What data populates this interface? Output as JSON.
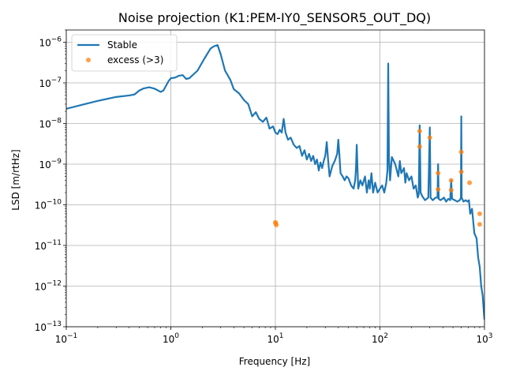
{
  "chart_data": {
    "type": "line",
    "title": "Noise projection (K1:PEM-IY0_SENSOR5_OUT_DQ)",
    "xlabel": "Frequency [Hz]",
    "ylabel": "LSD [m/rtHz]",
    "xscale": "log",
    "yscale": "log",
    "xlim": [
      0.1,
      1000
    ],
    "ylim": [
      1e-13,
      2e-06
    ],
    "grid": true,
    "legend_position": "top-left",
    "x_ticks": [
      {
        "value": 0.1,
        "base": "10",
        "exp": "−1"
      },
      {
        "value": 1,
        "base": "10",
        "exp": "0"
      },
      {
        "value": 10,
        "base": "10",
        "exp": "1"
      },
      {
        "value": 100,
        "base": "10",
        "exp": "2"
      },
      {
        "value": 1000,
        "base": "10",
        "exp": "3"
      }
    ],
    "y_ticks": [
      {
        "value": 1e-13,
        "base": "10",
        "exp": "−13"
      },
      {
        "value": 1e-12,
        "base": "10",
        "exp": "−12"
      },
      {
        "value": 1e-11,
        "base": "10",
        "exp": "−11"
      },
      {
        "value": 1e-10,
        "base": "10",
        "exp": "−10"
      },
      {
        "value": 1e-09,
        "base": "10",
        "exp": "−9"
      },
      {
        "value": 1e-08,
        "base": "10",
        "exp": "−8"
      },
      {
        "value": 1e-07,
        "base": "10",
        "exp": "−7"
      },
      {
        "value": 1e-06,
        "base": "10",
        "exp": "−6"
      }
    ],
    "series": [
      {
        "name": "Stable",
        "kind": "line",
        "color": "#1f77b4",
        "points": [
          [
            0.1,
            2.3e-08
          ],
          [
            0.15,
            3e-08
          ],
          [
            0.2,
            3.6e-08
          ],
          [
            0.3,
            4.5e-08
          ],
          [
            0.4,
            4.9e-08
          ],
          [
            0.45,
            5.2e-08
          ],
          [
            0.5,
            6.5e-08
          ],
          [
            0.55,
            7.3e-08
          ],
          [
            0.62,
            7.8e-08
          ],
          [
            0.7,
            7.2e-08
          ],
          [
            0.8,
            6e-08
          ],
          [
            0.85,
            6.5e-08
          ],
          [
            0.95,
            1.1e-07
          ],
          [
            1.0,
            1.3e-07
          ],
          [
            1.1,
            1.35e-07
          ],
          [
            1.2,
            1.5e-07
          ],
          [
            1.3,
            1.55e-07
          ],
          [
            1.4,
            1.25e-07
          ],
          [
            1.5,
            1.3e-07
          ],
          [
            1.8,
            2e-07
          ],
          [
            2.1,
            4e-07
          ],
          [
            2.4,
            7e-07
          ],
          [
            2.6,
            8e-07
          ],
          [
            2.8,
            8.5e-07
          ],
          [
            3.0,
            5e-07
          ],
          [
            3.3,
            2e-07
          ],
          [
            3.7,
            1.2e-07
          ],
          [
            4.0,
            7e-08
          ],
          [
            4.5,
            5.5e-08
          ],
          [
            5.0,
            3.8e-08
          ],
          [
            5.5,
            3e-08
          ],
          [
            6.0,
            1.5e-08
          ],
          [
            6.5,
            1.9e-08
          ],
          [
            7.0,
            1.3e-08
          ],
          [
            7.6,
            1.1e-08
          ],
          [
            8.2,
            1.4e-08
          ],
          [
            8.8,
            7.5e-09
          ],
          [
            9.5,
            8.5e-09
          ],
          [
            10.0,
            6e-09
          ],
          [
            10.5,
            5.5e-09
          ],
          [
            11.0,
            7e-09
          ],
          [
            11.5,
            6e-09
          ],
          [
            12.0,
            1.3e-08
          ],
          [
            12.5,
            6e-09
          ],
          [
            13.2,
            4e-09
          ],
          [
            14.0,
            4.5e-09
          ],
          [
            15.0,
            3e-09
          ],
          [
            16.0,
            2.5e-09
          ],
          [
            17.0,
            2.8e-09
          ],
          [
            18.0,
            1.6e-09
          ],
          [
            19.0,
            2.2e-09
          ],
          [
            20.0,
            1.3e-09
          ],
          [
            21.0,
            1.8e-09
          ],
          [
            22.0,
            1.2e-09
          ],
          [
            23.0,
            1.6e-09
          ],
          [
            24.0,
            1e-09
          ],
          [
            25.0,
            1.3e-09
          ],
          [
            26.0,
            7e-10
          ],
          [
            27.0,
            1.1e-09
          ],
          [
            28.0,
            8e-10
          ],
          [
            29.0,
            1.2e-09
          ],
          [
            30.0,
            1.6e-09
          ],
          [
            31.0,
            3.5e-09
          ],
          [
            32.0,
            1.2e-09
          ],
          [
            33.0,
            5e-10
          ],
          [
            35.0,
            9e-10
          ],
          [
            37.0,
            1.2e-09
          ],
          [
            39.0,
            1.8e-09
          ],
          [
            40.0,
            4e-09
          ],
          [
            41.0,
            1.6e-09
          ],
          [
            42.0,
            6e-10
          ],
          [
            44.0,
            5e-10
          ],
          [
            46.0,
            4e-10
          ],
          [
            48.0,
            5e-10
          ],
          [
            50.0,
            4.5e-10
          ],
          [
            53.0,
            3e-10
          ],
          [
            56.0,
            2.5e-10
          ],
          [
            58.0,
            4e-10
          ],
          [
            59.0,
            8e-10
          ],
          [
            60.0,
            3e-09
          ],
          [
            61.0,
            8e-10
          ],
          [
            62.0,
            2.5e-10
          ],
          [
            65.0,
            4e-10
          ],
          [
            68.0,
            3e-10
          ],
          [
            72.0,
            5e-10
          ],
          [
            75.0,
            2e-10
          ],
          [
            78.0,
            4e-10
          ],
          [
            80.0,
            2.5e-10
          ],
          [
            83.0,
            6e-10
          ],
          [
            86.0,
            2e-10
          ],
          [
            90.0,
            3.5e-10
          ],
          [
            95.0,
            2e-10
          ],
          [
            100.0,
            2.5e-10
          ],
          [
            105.0,
            3e-10
          ],
          [
            110.0,
            2e-10
          ],
          [
            115.0,
            3.5e-10
          ],
          [
            118.0,
            7e-10
          ],
          [
            120.0,
            3e-07
          ],
          [
            122.0,
            1.5e-09
          ],
          [
            125.0,
            4e-10
          ],
          [
            130.0,
            1.5e-09
          ],
          [
            140.0,
            1e-09
          ],
          [
            150.0,
            5e-10
          ],
          [
            155.0,
            1.2e-09
          ],
          [
            160.0,
            6e-10
          ],
          [
            170.0,
            8e-10
          ],
          [
            175.0,
            3.5e-10
          ],
          [
            180.0,
            6e-10
          ],
          [
            190.0,
            4e-10
          ],
          [
            200.0,
            5e-10
          ],
          [
            210.0,
            2.5e-10
          ],
          [
            220.0,
            3e-10
          ],
          [
            230.0,
            1.5e-10
          ],
          [
            235.0,
            1.8e-10
          ],
          [
            240.0,
            9e-09
          ],
          [
            245.0,
            2e-10
          ],
          [
            255.0,
            1.6e-10
          ],
          [
            270.0,
            1.3e-10
          ],
          [
            290.0,
            1.5e-10
          ],
          [
            300.0,
            8e-09
          ],
          [
            305.0,
            1.5e-10
          ],
          [
            320.0,
            1.3e-10
          ],
          [
            340.0,
            1.5e-10
          ],
          [
            355.0,
            1.5e-10
          ],
          [
            360.0,
            1e-09
          ],
          [
            365.0,
            1.4e-10
          ],
          [
            380.0,
            1.3e-10
          ],
          [
            410.0,
            1.5e-10
          ],
          [
            430.0,
            1.2e-10
          ],
          [
            450.0,
            1.4e-10
          ],
          [
            470.0,
            1.3e-10
          ],
          [
            480.0,
            4e-10
          ],
          [
            490.0,
            1.4e-10
          ],
          [
            520.0,
            1.3e-10
          ],
          [
            550.0,
            1.2e-10
          ],
          [
            580.0,
            1.3e-10
          ],
          [
            595.0,
            1.5e-10
          ],
          [
            600.0,
            1.5e-08
          ],
          [
            605.0,
            1.5e-10
          ],
          [
            630.0,
            1.2e-10
          ],
          [
            660.0,
            1.3e-10
          ],
          [
            690.0,
            1.2e-10
          ],
          [
            710.0,
            1.3e-10
          ],
          [
            730.0,
            6e-11
          ],
          [
            760.0,
            8e-11
          ],
          [
            800.0,
            2e-11
          ],
          [
            840.0,
            1.5e-11
          ],
          [
            870.0,
            5e-12
          ],
          [
            900.0,
            3e-12
          ],
          [
            930.0,
            1e-12
          ],
          [
            960.0,
            6e-13
          ],
          [
            990.0,
            2e-13
          ],
          [
            1000.0,
            1.5e-13
          ]
        ]
      },
      {
        "name": "excess (>3)",
        "kind": "scatter",
        "color": "#ff7f0e",
        "points": [
          [
            10.0,
            3.7e-11
          ],
          [
            10.1,
            3.5e-11
          ],
          [
            10.2,
            3.2e-11
          ],
          [
            240.0,
            6.5e-09
          ],
          [
            240.0,
            2.7e-09
          ],
          [
            300.0,
            4.5e-09
          ],
          [
            360.0,
            6e-10
          ],
          [
            360.0,
            2.4e-10
          ],
          [
            480.0,
            4e-10
          ],
          [
            480.0,
            2.3e-10
          ],
          [
            600.0,
            2e-09
          ],
          [
            600.0,
            6.5e-10
          ],
          [
            720.0,
            3.5e-10
          ],
          [
            900.0,
            6e-11
          ],
          [
            900.0,
            3.3e-11
          ]
        ]
      }
    ]
  }
}
